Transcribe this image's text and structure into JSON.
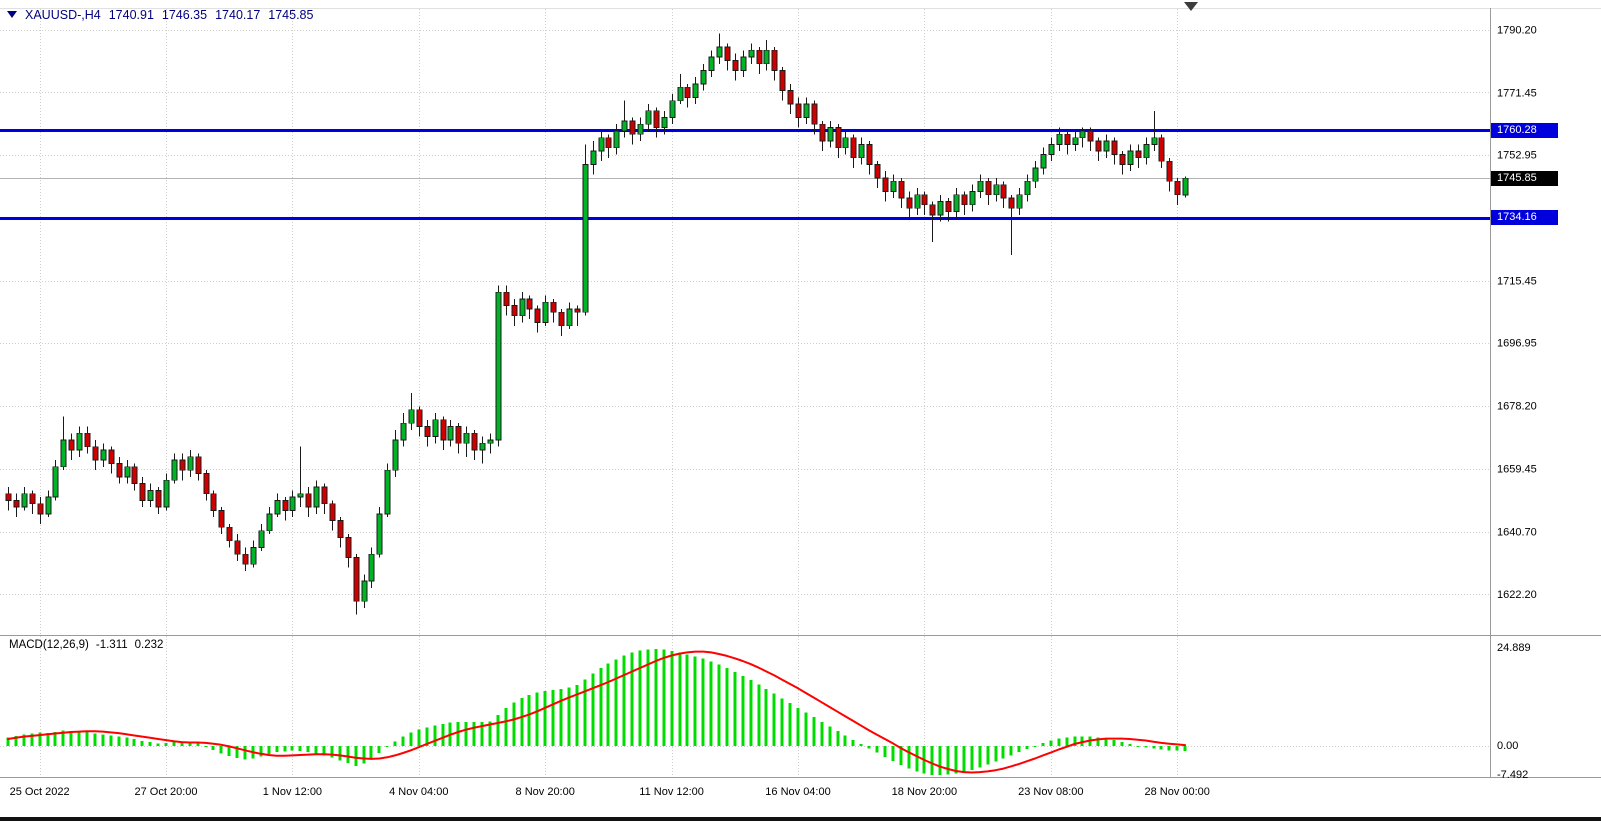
{
  "header": {
    "symbol_period": "XAUUSD-,H4",
    "open": "1740.91",
    "high": "1746.35",
    "low": "1740.17",
    "close": "1745.85"
  },
  "macd_header": {
    "label": "MACD(12,26,9)",
    "main_value": "-1.311",
    "signal_value": "0.232"
  },
  "tags": {
    "resistance": "1760.28",
    "support": "1734.16",
    "current": "1745.85"
  },
  "colors": {
    "bull": "#00B428",
    "bear": "#D10000",
    "wick": "#1a1a1a",
    "macd_hist": "#00DC00",
    "macd_signal": "#FF0000",
    "hline": "#0000DC",
    "grid": "#cfcfcf",
    "current_line": "#b3b3b3",
    "separator": "#9a9a9a",
    "header_text": "#000080",
    "tag_current_bg": "#000000"
  },
  "chart_data": {
    "type": "candlestick",
    "symbol": "XAUUSD-",
    "timeframe": "H4",
    "price_range": [
      1612,
      1799
    ],
    "y_ticks": [
      "1790.20",
      "1771.45",
      "1752.95",
      "1715.45",
      "1696.95",
      "1678.20",
      "1659.45",
      "1640.70",
      "1622.20"
    ],
    "x_labels": [
      "25 Oct 2022",
      "27 Oct 20:00",
      "1 Nov 12:00",
      "4 Nov 04:00",
      "8 Nov 20:00",
      "11 Nov 12:00",
      "16 Nov 04:00",
      "18 Nov 20:00",
      "23 Nov 08:00",
      "28 Nov 00:00"
    ],
    "x_label_indices": [
      4,
      20,
      36,
      52,
      68,
      84,
      100,
      116,
      132,
      148
    ],
    "hlines": [
      1760.28,
      1734.16
    ],
    "current_price": 1745.85,
    "candles": [
      [
        1652,
        1654,
        1647,
        1650
      ],
      [
        1650,
        1652,
        1645,
        1648
      ],
      [
        1648,
        1654,
        1647,
        1652
      ],
      [
        1652,
        1653,
        1646,
        1649
      ],
      [
        1649,
        1651,
        1643,
        1646
      ],
      [
        1646,
        1653,
        1645,
        1651
      ],
      [
        1651,
        1662,
        1650,
        1660
      ],
      [
        1660,
        1675,
        1659,
        1668
      ],
      [
        1668,
        1670,
        1662,
        1665
      ],
      [
        1665,
        1672,
        1663,
        1670
      ],
      [
        1670,
        1672,
        1664,
        1666
      ],
      [
        1666,
        1668,
        1659,
        1662
      ],
      [
        1662,
        1667,
        1660,
        1665
      ],
      [
        1665,
        1666,
        1658,
        1661
      ],
      [
        1661,
        1663,
        1655,
        1657
      ],
      [
        1657,
        1662,
        1655,
        1660
      ],
      [
        1660,
        1661,
        1653,
        1655
      ],
      [
        1655,
        1657,
        1648,
        1650
      ],
      [
        1650,
        1655,
        1648,
        1653
      ],
      [
        1653,
        1654,
        1646,
        1648
      ],
      [
        1648,
        1658,
        1647,
        1656
      ],
      [
        1656,
        1664,
        1655,
        1662
      ],
      [
        1662,
        1664,
        1656,
        1659
      ],
      [
        1659,
        1665,
        1657,
        1663
      ],
      [
        1663,
        1664,
        1656,
        1658
      ],
      [
        1658,
        1659,
        1650,
        1652
      ],
      [
        1652,
        1653,
        1645,
        1647
      ],
      [
        1647,
        1648,
        1640,
        1642
      ],
      [
        1642,
        1643,
        1636,
        1638
      ],
      [
        1638,
        1640,
        1632,
        1634
      ],
      [
        1634,
        1636,
        1629,
        1631
      ],
      [
        1631,
        1638,
        1630,
        1636
      ],
      [
        1636,
        1643,
        1635,
        1641
      ],
      [
        1641,
        1648,
        1640,
        1646
      ],
      [
        1646,
        1652,
        1645,
        1650
      ],
      [
        1650,
        1651,
        1644,
        1647
      ],
      [
        1647,
        1653,
        1645,
        1651
      ],
      [
        1651,
        1666,
        1648,
        1652
      ],
      [
        1652,
        1654,
        1645,
        1648
      ],
      [
        1648,
        1656,
        1646,
        1654
      ],
      [
        1654,
        1655,
        1646,
        1649
      ],
      [
        1649,
        1650,
        1641,
        1644
      ],
      [
        1644,
        1645,
        1636,
        1639
      ],
      [
        1639,
        1640,
        1630,
        1633
      ],
      [
        1633,
        1634,
        1616,
        1620
      ],
      [
        1620,
        1628,
        1618,
        1626
      ],
      [
        1626,
        1636,
        1624,
        1634
      ],
      [
        1634,
        1648,
        1633,
        1646
      ],
      [
        1646,
        1661,
        1645,
        1659
      ],
      [
        1659,
        1671,
        1657,
        1668
      ],
      [
        1668,
        1676,
        1666,
        1673
      ],
      [
        1673,
        1682,
        1671,
        1677
      ],
      [
        1677,
        1678,
        1669,
        1672
      ],
      [
        1672,
        1674,
        1666,
        1669
      ],
      [
        1669,
        1676,
        1667,
        1674
      ],
      [
        1674,
        1675,
        1665,
        1668
      ],
      [
        1668,
        1674,
        1666,
        1672
      ],
      [
        1672,
        1673,
        1664,
        1667
      ],
      [
        1667,
        1672,
        1663,
        1670
      ],
      [
        1670,
        1671,
        1662,
        1665
      ],
      [
        1665,
        1669,
        1661,
        1667
      ],
      [
        1667,
        1670,
        1664,
        1668
      ],
      [
        1668,
        1714,
        1666,
        1712
      ],
      [
        1712,
        1714,
        1705,
        1708
      ],
      [
        1708,
        1710,
        1702,
        1705
      ],
      [
        1705,
        1712,
        1703,
        1710
      ],
      [
        1710,
        1711,
        1704,
        1707
      ],
      [
        1707,
        1708,
        1700,
        1703
      ],
      [
        1703,
        1711,
        1702,
        1709
      ],
      [
        1709,
        1710,
        1703,
        1706
      ],
      [
        1706,
        1707,
        1699,
        1702
      ],
      [
        1702,
        1709,
        1701,
        1707
      ],
      [
        1707,
        1708,
        1702,
        1706
      ],
      [
        1706,
        1756,
        1705,
        1750
      ],
      [
        1750,
        1757,
        1747,
        1754
      ],
      [
        1754,
        1760,
        1751,
        1758
      ],
      [
        1758,
        1759,
        1752,
        1755
      ],
      [
        1755,
        1762,
        1753,
        1760
      ],
      [
        1760,
        1769,
        1758,
        1763
      ],
      [
        1763,
        1764,
        1756,
        1759
      ],
      [
        1759,
        1764,
        1757,
        1762
      ],
      [
        1762,
        1768,
        1760,
        1766
      ],
      [
        1766,
        1767,
        1758,
        1761
      ],
      [
        1761,
        1766,
        1759,
        1764
      ],
      [
        1764,
        1771,
        1762,
        1769
      ],
      [
        1769,
        1777,
        1768,
        1773
      ],
      [
        1773,
        1774,
        1767,
        1770
      ],
      [
        1770,
        1776,
        1768,
        1774
      ],
      [
        1774,
        1780,
        1772,
        1778
      ],
      [
        1778,
        1784,
        1776,
        1782
      ],
      [
        1782,
        1789,
        1780,
        1785
      ],
      [
        1785,
        1786,
        1778,
        1781
      ],
      [
        1781,
        1783,
        1775,
        1778
      ],
      [
        1778,
        1784,
        1776,
        1782
      ],
      [
        1782,
        1786,
        1780,
        1784
      ],
      [
        1784,
        1785,
        1777,
        1780
      ],
      [
        1780,
        1787,
        1778,
        1784
      ],
      [
        1784,
        1785,
        1775,
        1778
      ],
      [
        1778,
        1779,
        1769,
        1772
      ],
      [
        1772,
        1774,
        1765,
        1768
      ],
      [
        1768,
        1770,
        1761,
        1764
      ],
      [
        1764,
        1770,
        1762,
        1768
      ],
      [
        1768,
        1769,
        1759,
        1762
      ],
      [
        1762,
        1763,
        1754,
        1757
      ],
      [
        1757,
        1763,
        1755,
        1761
      ],
      [
        1761,
        1762,
        1752,
        1755
      ],
      [
        1755,
        1760,
        1753,
        1758
      ],
      [
        1758,
        1759,
        1749,
        1752
      ],
      [
        1752,
        1758,
        1750,
        1756
      ],
      [
        1756,
        1757,
        1747,
        1750
      ],
      [
        1750,
        1751,
        1743,
        1746
      ],
      [
        1746,
        1748,
        1739,
        1742
      ],
      [
        1742,
        1747,
        1740,
        1745
      ],
      [
        1745,
        1746,
        1737,
        1740
      ],
      [
        1740,
        1742,
        1734,
        1737
      ],
      [
        1737,
        1743,
        1735,
        1741
      ],
      [
        1741,
        1742,
        1735,
        1738
      ],
      [
        1738,
        1739,
        1727,
        1735
      ],
      [
        1735,
        1741,
        1733,
        1739
      ],
      [
        1739,
        1740,
        1733,
        1736
      ],
      [
        1736,
        1743,
        1734,
        1741
      ],
      [
        1741,
        1742,
        1735,
        1738
      ],
      [
        1738,
        1744,
        1736,
        1742
      ],
      [
        1742,
        1747,
        1740,
        1745
      ],
      [
        1745,
        1746,
        1738,
        1741
      ],
      [
        1741,
        1746,
        1739,
        1744
      ],
      [
        1744,
        1745,
        1737,
        1740
      ],
      [
        1740,
        1741,
        1723,
        1737
      ],
      [
        1737,
        1743,
        1735,
        1741
      ],
      [
        1741,
        1747,
        1739,
        1745
      ],
      [
        1745,
        1751,
        1743,
        1749
      ],
      [
        1749,
        1755,
        1747,
        1753
      ],
      [
        1753,
        1758,
        1751,
        1756
      ],
      [
        1756,
        1761,
        1754,
        1759
      ],
      [
        1759,
        1760,
        1753,
        1756
      ],
      [
        1756,
        1760,
        1754,
        1758
      ],
      [
        1758,
        1761,
        1755,
        1760
      ],
      [
        1760,
        1761,
        1754,
        1757
      ],
      [
        1757,
        1758,
        1751,
        1754
      ],
      [
        1754,
        1759,
        1752,
        1757
      ],
      [
        1757,
        1758,
        1750,
        1753
      ],
      [
        1753,
        1754,
        1747,
        1750
      ],
      [
        1750,
        1756,
        1748,
        1754
      ],
      [
        1754,
        1756,
        1749,
        1752
      ],
      [
        1752,
        1758,
        1750,
        1756
      ],
      [
        1756,
        1766,
        1754,
        1758
      ],
      [
        1758,
        1759,
        1749,
        1751
      ],
      [
        1751,
        1752,
        1742,
        1745
      ],
      [
        1745,
        1746,
        1738,
        1741
      ],
      [
        1740.9,
        1746.4,
        1740.2,
        1745.9
      ]
    ],
    "macd": {
      "params": [
        12,
        26,
        9
      ],
      "y_ticks": [
        "24.889",
        "0.00",
        "-7.492"
      ],
      "range": [
        -7.492,
        24.889
      ],
      "last_main": -1.311,
      "last_signal": 0.232,
      "histogram": [
        2.2,
        2.6,
        3.0,
        3.2,
        3.4,
        3.3,
        3.6,
        4.0,
        3.8,
        3.9,
        3.6,
        3.2,
        3.0,
        2.7,
        2.4,
        2.2,
        1.8,
        1.3,
        1.0,
        0.6,
        0.8,
        1.1,
        0.9,
        1.1,
        0.6,
        -0.2,
        -1.0,
        -1.9,
        -2.6,
        -3.1,
        -3.5,
        -3.2,
        -2.7,
        -2.1,
        -1.6,
        -1.4,
        -1.1,
        -1.3,
        -1.6,
        -1.9,
        -2.4,
        -3.0,
        -3.7,
        -4.4,
        -5.1,
        -4.5,
        -3.3,
        -1.8,
        -0.3,
        1.2,
        2.4,
        3.4,
        4.2,
        4.8,
        5.3,
        5.7,
        6.0,
        6.1,
        6.2,
        6.2,
        6.1,
        6.3,
        8.0,
        9.8,
        11.2,
        12.3,
        13.1,
        13.7,
        14.1,
        14.4,
        14.6,
        15.0,
        15.6,
        17.0,
        18.6,
        20.0,
        21.2,
        22.2,
        23.2,
        24.0,
        24.5,
        24.8,
        24.889,
        24.7,
        24.4,
        24.0,
        23.5,
        23.0,
        22.4,
        21.7,
        20.9,
        20.0,
        19.0,
        18.0,
        16.9,
        15.8,
        14.6,
        13.4,
        12.2,
        11.0,
        9.8,
        8.6,
        7.4,
        6.2,
        5.0,
        3.8,
        2.7,
        1.6,
        0.5,
        -0.6,
        -1.7,
        -2.8,
        -3.9,
        -4.9,
        -5.8,
        -6.5,
        -7.1,
        -7.4,
        -7.492,
        -7.3,
        -7.0,
        -6.6,
        -6.1,
        -5.5,
        -4.8,
        -4.0,
        -3.2,
        -2.4,
        -1.6,
        -0.8,
        0.0,
        0.8,
        1.4,
        1.9,
        2.2,
        2.4,
        2.5,
        2.4,
        2.2,
        1.9,
        1.5,
        1.0,
        0.5,
        0.0,
        -0.4,
        -0.7,
        -0.9,
        -1.1,
        -1.2,
        -1.311
      ],
      "signal": [
        1.8,
        2.1,
        2.4,
        2.6,
        2.8,
        3.0,
        3.2,
        3.4,
        3.6,
        3.7,
        3.8,
        3.8,
        3.7,
        3.5,
        3.3,
        3.0,
        2.7,
        2.4,
        2.1,
        1.8,
        1.5,
        1.2,
        1.0,
        0.9,
        0.9,
        0.8,
        0.6,
        0.3,
        -0.1,
        -0.6,
        -1.1,
        -1.6,
        -2.0,
        -2.3,
        -2.5,
        -2.5,
        -2.4,
        -2.3,
        -2.2,
        -2.1,
        -2.1,
        -2.2,
        -2.4,
        -2.7,
        -3.0,
        -3.2,
        -3.3,
        -3.2,
        -2.9,
        -2.4,
        -1.8,
        -1.1,
        -0.3,
        0.5,
        1.3,
        2.1,
        2.9,
        3.6,
        4.2,
        4.7,
        5.1,
        5.5,
        5.9,
        6.3,
        6.8,
        7.4,
        8.1,
        8.9,
        9.8,
        10.7,
        11.6,
        12.4,
        13.2,
        14.0,
        14.8,
        15.6,
        16.4,
        17.3,
        18.2,
        19.1,
        20.0,
        20.9,
        21.8,
        22.6,
        23.2,
        23.7,
        24.0,
        24.2,
        24.2,
        24.0,
        23.6,
        23.1,
        22.5,
        21.8,
        21.0,
        20.1,
        19.1,
        18.1,
        17.0,
        15.9,
        14.8,
        13.6,
        12.4,
        11.2,
        10.0,
        8.8,
        7.6,
        6.4,
        5.2,
        4.0,
        2.9,
        1.8,
        0.7,
        -0.5,
        -1.6,
        -2.6,
        -3.6,
        -4.5,
        -5.3,
        -5.9,
        -6.4,
        -6.7,
        -6.8,
        -6.7,
        -6.5,
        -6.2,
        -5.8,
        -5.2,
        -4.6,
        -3.9,
        -3.2,
        -2.4,
        -1.7,
        -0.9,
        -0.2,
        0.5,
        1.0,
        1.4,
        1.7,
        1.9,
        1.9,
        1.9,
        1.8,
        1.6,
        1.4,
        1.1,
        0.8,
        0.6,
        0.4,
        0.232
      ]
    }
  }
}
